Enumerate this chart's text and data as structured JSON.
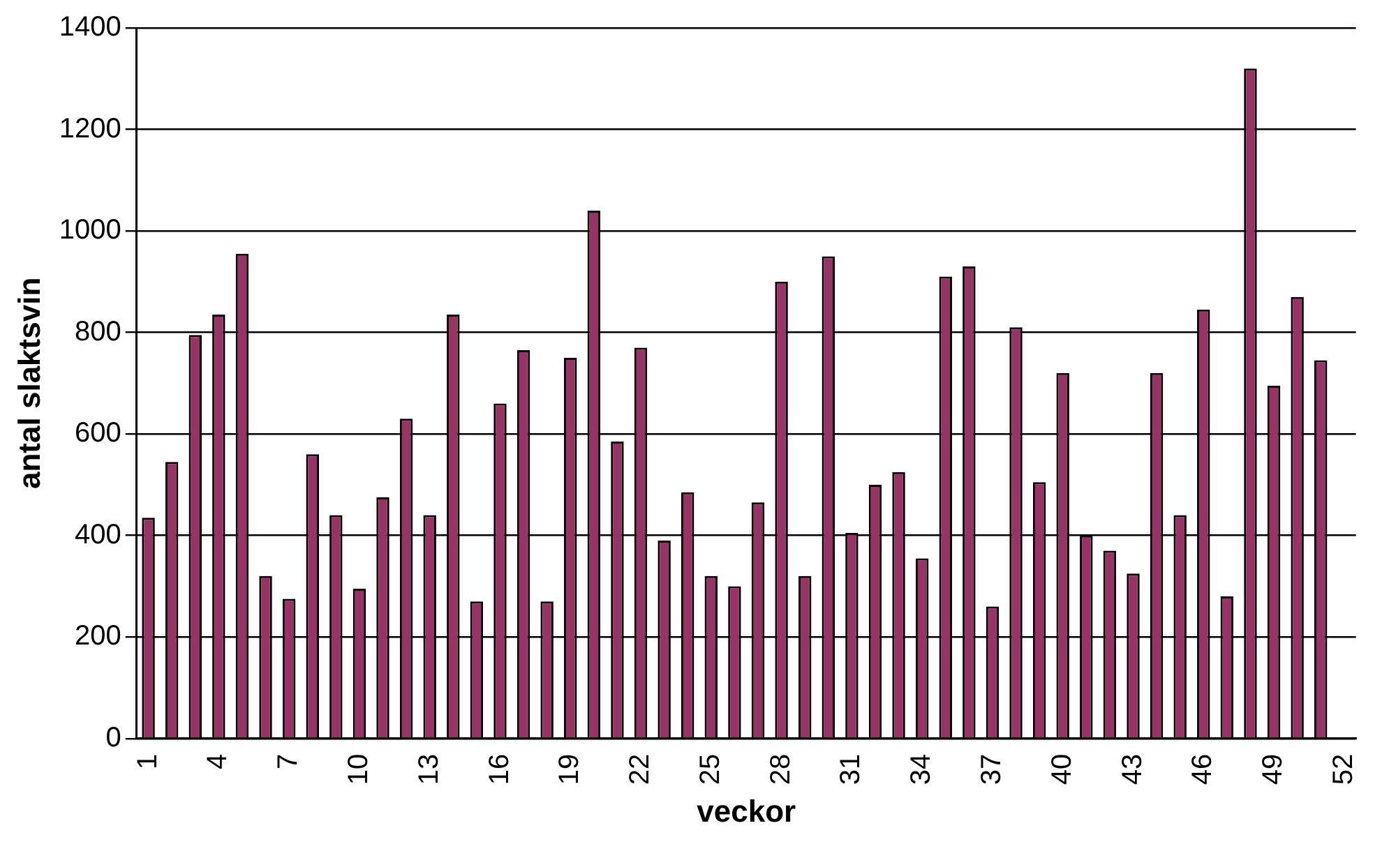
{
  "chart_data": {
    "type": "bar",
    "xlabel": "veckor",
    "ylabel": "antal slaktsvin",
    "categories": [
      "1",
      null,
      null,
      "4",
      null,
      null,
      "7",
      null,
      null,
      "10",
      null,
      null,
      "13",
      null,
      null,
      "16",
      null,
      null,
      "19",
      null,
      null,
      "22",
      null,
      null,
      "25",
      null,
      null,
      "28",
      null,
      null,
      "31",
      null,
      null,
      "34",
      null,
      null,
      "37",
      null,
      null,
      "40",
      null,
      null,
      "43",
      null,
      null,
      "46",
      null,
      null,
      "49",
      null,
      null,
      "52"
    ],
    "values": [
      435,
      545,
      795,
      835,
      955,
      320,
      275,
      560,
      440,
      295,
      475,
      630,
      440,
      835,
      270,
      660,
      765,
      270,
      750,
      1040,
      585,
      770,
      390,
      485,
      320,
      300,
      465,
      900,
      320,
      950,
      405,
      500,
      525,
      355,
      910,
      930,
      260,
      810,
      505,
      720,
      400,
      370,
      325,
      720,
      440,
      845,
      280,
      1320,
      695,
      870,
      745,
      null
    ],
    "color": "#993366",
    "ylim": [
      0,
      1400
    ],
    "yticks": [
      0,
      200,
      400,
      600,
      800,
      1000,
      1200,
      1400
    ],
    "grid": "y",
    "legend": false
  }
}
